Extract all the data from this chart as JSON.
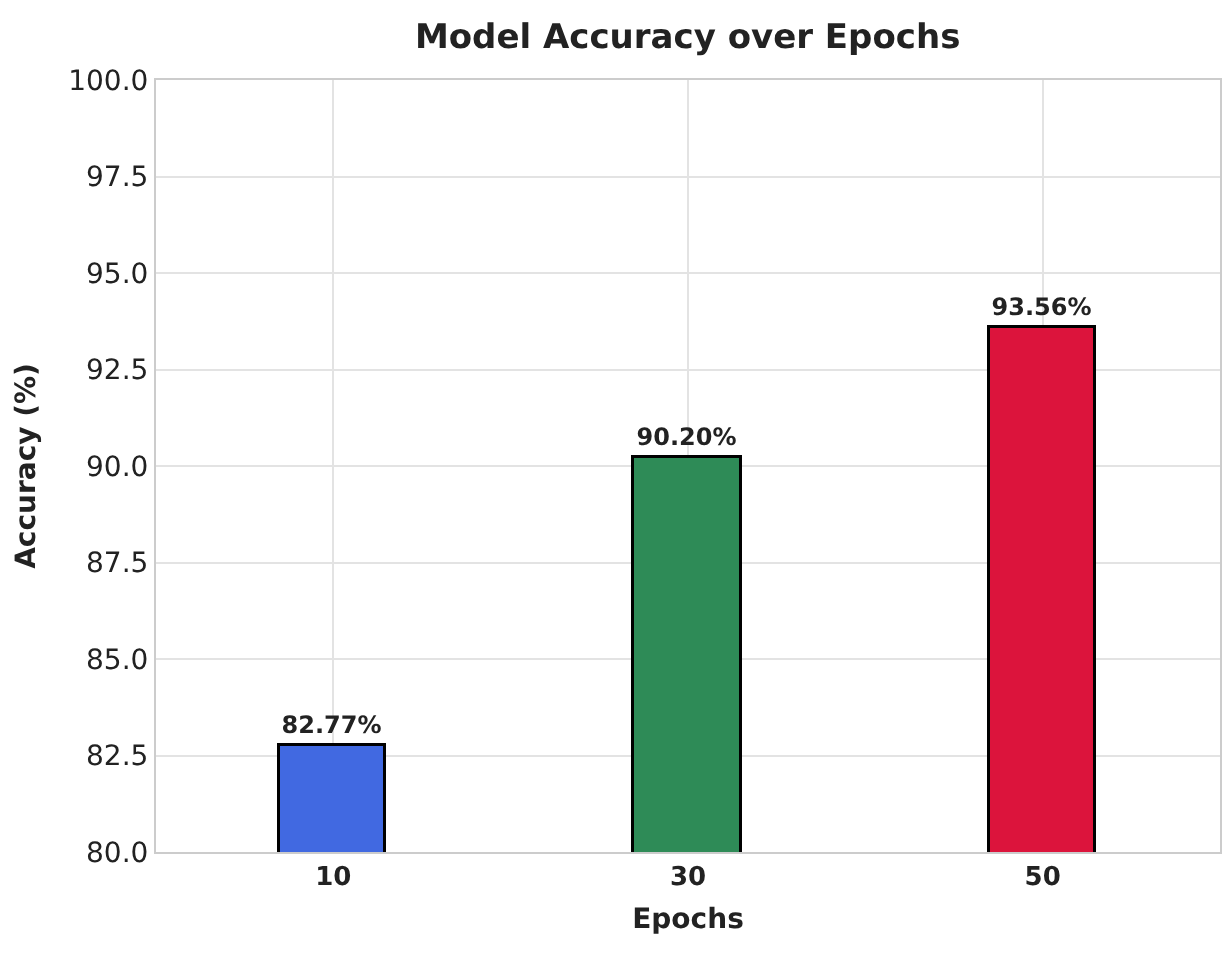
{
  "chart_data": {
    "type": "bar",
    "title": "Model Accuracy over Epochs",
    "xlabel": "Epochs",
    "ylabel": "Accuracy (%)",
    "categories": [
      "10",
      "30",
      "50"
    ],
    "values": [
      82.77,
      90.2,
      93.56
    ],
    "colors": [
      "#4169e1",
      "#2e8b57",
      "#dc143c"
    ],
    "value_labels": [
      "82.77%",
      "90.20%",
      "93.56%"
    ],
    "ylim": [
      80,
      100
    ],
    "yticks": [
      {
        "value": 80,
        "label": "80.0"
      },
      {
        "value": 82.5,
        "label": "82.5"
      },
      {
        "value": 85,
        "label": "85.0"
      },
      {
        "value": 87.5,
        "label": "87.5"
      },
      {
        "value": 90,
        "label": "90.0"
      },
      {
        "value": 92.5,
        "label": "92.5"
      },
      {
        "value": 95,
        "label": "95.0"
      },
      {
        "value": 97.5,
        "label": "97.5"
      },
      {
        "value": 100,
        "label": "100.0"
      }
    ],
    "grid": true
  }
}
